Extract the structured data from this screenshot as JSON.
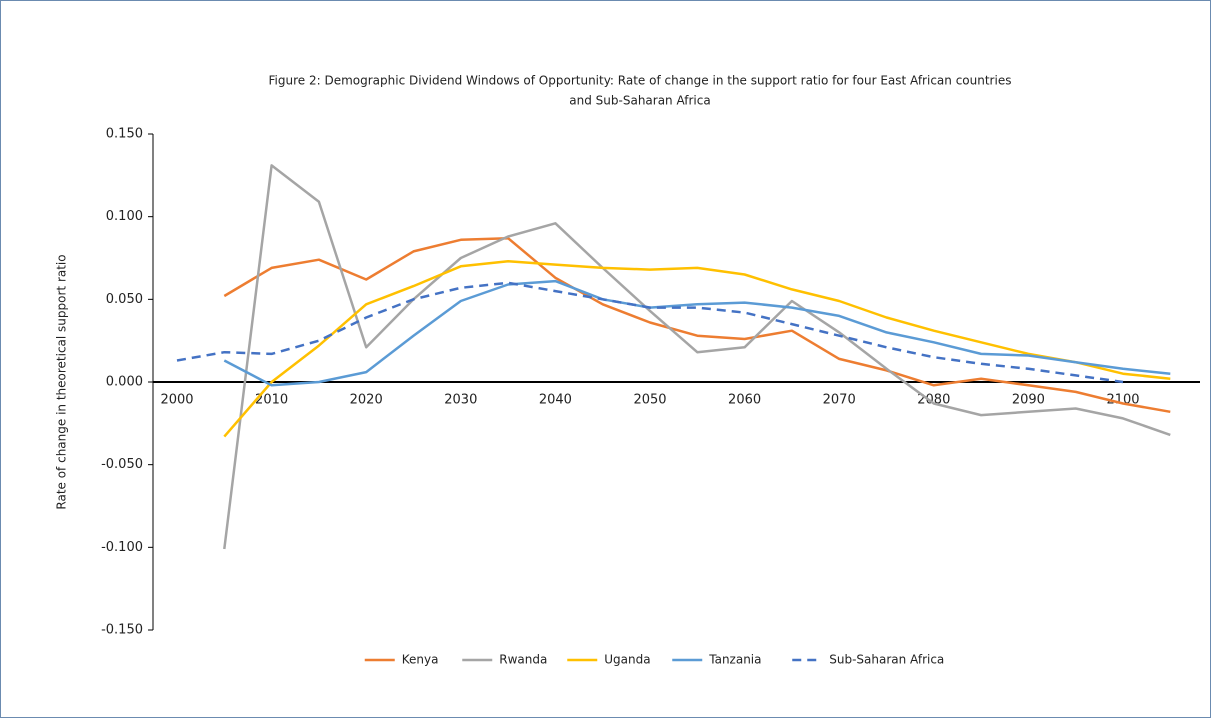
{
  "chart_data": {
    "type": "line",
    "title": [
      "Figure 2: Demographic Dividend Windows of Opportunity: Rate of change in the support ratio for four East African countries",
      "and Sub-Saharan Africa"
    ],
    "y_label": "Rate of change in theoretical support ratio",
    "categories": [
      "2000",
      null,
      "2010",
      null,
      "2020",
      null,
      "2030",
      null,
      "2040",
      null,
      "2050",
      null,
      "2060",
      null,
      "2070",
      null,
      "2080",
      null,
      "2090",
      null,
      "2100",
      null
    ],
    "series": [
      {
        "name": "Kenya",
        "color": "#ED7D31",
        "dashed": false,
        "values": [
          null,
          0.052,
          0.069,
          0.074,
          0.062,
          0.079,
          0.086,
          0.087,
          0.063,
          0.047,
          0.036,
          0.028,
          0.026,
          0.031,
          0.014,
          0.007,
          -0.002,
          0.002,
          -0.002,
          -0.006,
          -0.013,
          -0.018
        ]
      },
      {
        "name": "Rwanda",
        "color": "#A5A5A5",
        "dashed": false,
        "values": [
          null,
          -0.101,
          0.131,
          0.109,
          0.021,
          0.05,
          0.075,
          0.088,
          0.096,
          0.069,
          0.043,
          0.018,
          0.021,
          0.049,
          0.03,
          0.008,
          -0.013,
          -0.02,
          -0.018,
          -0.016,
          -0.022,
          -0.032
        ]
      },
      {
        "name": "Uganda",
        "color": "#FFC000",
        "dashed": false,
        "values": [
          null,
          -0.033,
          0.0,
          0.022,
          0.047,
          0.058,
          0.07,
          0.073,
          0.071,
          0.069,
          0.068,
          0.069,
          0.065,
          0.056,
          0.049,
          0.039,
          0.031,
          0.024,
          0.017,
          0.012,
          0.005,
          0.002
        ]
      },
      {
        "name": "Tanzania",
        "color": "#5B9BD5",
        "dashed": false,
        "values": [
          null,
          0.013,
          -0.002,
          0.0,
          0.006,
          0.028,
          0.049,
          0.059,
          0.061,
          0.05,
          0.045,
          0.047,
          0.048,
          0.045,
          0.04,
          0.03,
          0.024,
          0.017,
          0.016,
          0.012,
          0.008,
          0.005
        ]
      },
      {
        "name": "Sub-Saharan Africa",
        "color": "#4472C4",
        "dashed": true,
        "values": [
          0.013,
          0.018,
          0.017,
          0.025,
          0.039,
          0.05,
          0.057,
          0.06,
          0.055,
          0.05,
          0.045,
          0.045,
          0.042,
          0.035,
          0.028,
          0.021,
          0.015,
          0.011,
          0.008,
          0.004,
          0.0,
          null
        ]
      }
    ],
    "ylim": [
      -0.15,
      0.15
    ],
    "yticks": [
      {
        "value": -0.15,
        "label": "-0.150"
      },
      {
        "value": -0.1,
        "label": "-0.100"
      },
      {
        "value": -0.05,
        "label": "-0.050"
      },
      {
        "value": 0,
        "label": "0.000"
      },
      {
        "value": 0.05,
        "label": "0.050"
      },
      {
        "value": 0.1,
        "label": "0.100"
      },
      {
        "value": 0.15,
        "label": "0.150"
      }
    ],
    "legend": "bottom"
  }
}
